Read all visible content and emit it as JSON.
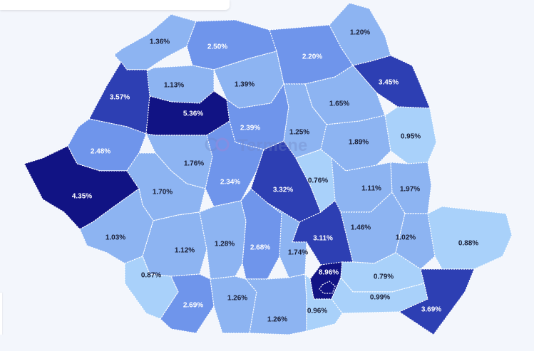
{
  "palette": {
    "lightest": "#a9d1fa",
    "light": "#8db4f2",
    "medium": "#6f95eb",
    "medium_dark": "#4a70dd",
    "dark": "#2d3fb3",
    "darkest": "#111384"
  },
  "watermark": {
    "text": "Termene",
    "icon": "termene-logo-icon"
  },
  "counties": [
    {
      "id": "c01",
      "label": "1.36%",
      "value": 1.36,
      "fill": "#8db4f2"
    },
    {
      "id": "c02",
      "label": "2.50%",
      "value": 2.5,
      "fill": "#6f95eb"
    },
    {
      "id": "c03",
      "label": "2.20%",
      "value": 2.2,
      "fill": "#6f95eb"
    },
    {
      "id": "c04",
      "label": "1.20%",
      "value": 1.2,
      "fill": "#8db4f2"
    },
    {
      "id": "c05",
      "label": "3.45%",
      "value": 3.45,
      "fill": "#2d3fb3"
    },
    {
      "id": "c06",
      "label": "1.13%",
      "value": 1.13,
      "fill": "#8db4f2"
    },
    {
      "id": "c07",
      "label": "1.39%",
      "value": 1.39,
      "fill": "#8db4f2"
    },
    {
      "id": "c08",
      "label": "3.57%",
      "value": 3.57,
      "fill": "#2d3fb3"
    },
    {
      "id": "c09",
      "label": "5.36%",
      "value": 5.36,
      "fill": "#111384"
    },
    {
      "id": "c10",
      "label": "1.65%",
      "value": 1.65,
      "fill": "#8db4f2"
    },
    {
      "id": "c11",
      "label": "2.39%",
      "value": 2.39,
      "fill": "#6f95eb"
    },
    {
      "id": "c12",
      "label": "1.25%",
      "value": 1.25,
      "fill": "#8db4f2"
    },
    {
      "id": "c13",
      "label": "0.95%",
      "value": 0.95,
      "fill": "#a9d1fa"
    },
    {
      "id": "c14",
      "label": "2.48%",
      "value": 2.48,
      "fill": "#6f95eb"
    },
    {
      "id": "c15",
      "label": "1.89%",
      "value": 1.89,
      "fill": "#8db4f2"
    },
    {
      "id": "c16",
      "label": "1.76%",
      "value": 1.76,
      "fill": "#8db4f2"
    },
    {
      "id": "c17",
      "label": "2.34%",
      "value": 2.34,
      "fill": "#6f95eb"
    },
    {
      "id": "c18",
      "label": "3.32%",
      "value": 3.32,
      "fill": "#2d3fb3"
    },
    {
      "id": "c19",
      "label": "0.76%",
      "value": 0.76,
      "fill": "#a9d1fa"
    },
    {
      "id": "c20",
      "label": "4.35%",
      "value": 4.35,
      "fill": "#111384"
    },
    {
      "id": "c21",
      "label": "1.70%",
      "value": 1.7,
      "fill": "#8db4f2"
    },
    {
      "id": "c22",
      "label": "1.11%",
      "value": 1.11,
      "fill": "#8db4f2"
    },
    {
      "id": "c23",
      "label": "1.97%",
      "value": 1.97,
      "fill": "#8db4f2"
    },
    {
      "id": "c24",
      "label": "1.03%",
      "value": 1.03,
      "fill": "#8db4f2"
    },
    {
      "id": "c25",
      "label": "3.11%",
      "value": 3.11,
      "fill": "#2d3fb3"
    },
    {
      "id": "c26",
      "label": "1.46%",
      "value": 1.46,
      "fill": "#8db4f2"
    },
    {
      "id": "c27",
      "label": "1.02%",
      "value": 1.02,
      "fill": "#8db4f2"
    },
    {
      "id": "c28",
      "label": "0.88%",
      "value": 0.88,
      "fill": "#a9d1fa"
    },
    {
      "id": "c29",
      "label": "1.12%",
      "value": 1.12,
      "fill": "#8db4f2"
    },
    {
      "id": "c30",
      "label": "1.28%",
      "value": 1.28,
      "fill": "#8db4f2"
    },
    {
      "id": "c31",
      "label": "2.68%",
      "value": 2.68,
      "fill": "#6f95eb"
    },
    {
      "id": "c32",
      "label": "1.74%",
      "value": 1.74,
      "fill": "#8db4f2"
    },
    {
      "id": "c33",
      "label": "8.96%",
      "value": 8.96,
      "fill": "#111384"
    },
    {
      "id": "c34",
      "label": "0.79%",
      "value": 0.79,
      "fill": "#a9d1fa"
    },
    {
      "id": "c35",
      "label": "0.87%",
      "value": 0.87,
      "fill": "#a9d1fa"
    },
    {
      "id": "c36",
      "label": "2.69%",
      "value": 2.69,
      "fill": "#6f95eb"
    },
    {
      "id": "c37",
      "label": "1.26%",
      "value": 1.26,
      "fill": "#8db4f2"
    },
    {
      "id": "c38",
      "label": "0.99%",
      "value": 0.99,
      "fill": "#a9d1fa"
    },
    {
      "id": "c39",
      "label": "1.26%",
      "value": 1.26,
      "fill": "#8db4f2"
    },
    {
      "id": "c40",
      "label": "0.96%",
      "value": 0.96,
      "fill": "#a9d1fa"
    },
    {
      "id": "c41",
      "label": "3.69%",
      "value": 3.69,
      "fill": "#2d3fb3"
    }
  ]
}
